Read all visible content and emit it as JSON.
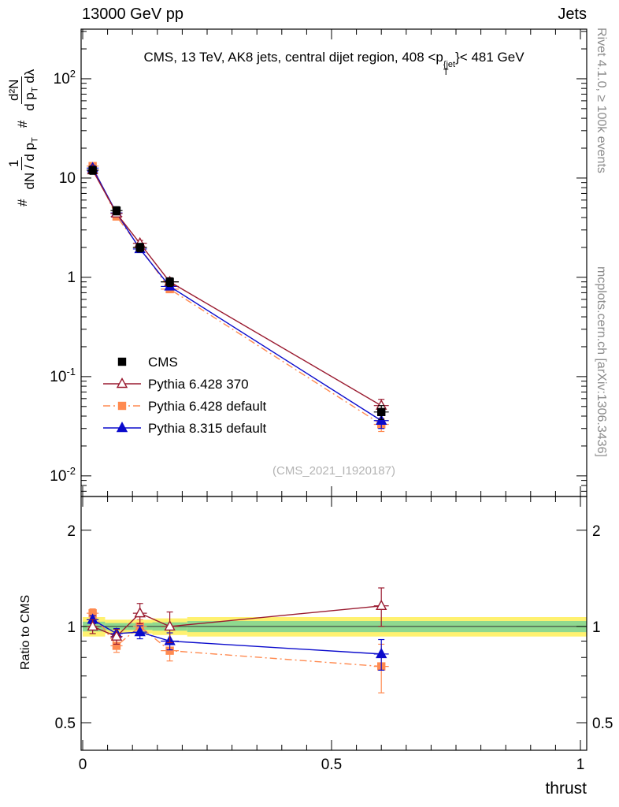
{
  "header": {
    "left": "13000 GeV pp",
    "right": "Jets"
  },
  "title": {
    "pre": "CMS, 13 TeV, AK8 jets, central dijet region, 408 <p",
    "sup": "{jet",
    "sub": "T",
    "post": "}< 481 GeV"
  },
  "side_labels": {
    "rivet": "Rivet 4.1.0, ≥ 100k events",
    "mcplots": "mcplots.cern.ch [arXiv:1306.3436]"
  },
  "watermark": "(CMS_2021_I1920187)",
  "x_axis_label": "thrust",
  "ratio_axis_label": "Ratio to CMS",
  "y_axis_label": {
    "hash1": "#",
    "frac1_num": "1",
    "frac1_den_a": "dN / d p",
    "frac1_den_sub": "T",
    "hash2": "#",
    "frac2_num": "d²N",
    "frac2_den_a": "d p",
    "frac2_den_sub": "T",
    "frac2_den_b": " dλ"
  },
  "chart_data": {
    "type": "line",
    "title": "CMS, 13 TeV, AK8 jets, central dijet region, 408 < pT{jet} < 481 GeV",
    "xlabel": "thrust",
    "ylabel_plain": "# 1/(dN/dpT) d²N/(dpT dλ)",
    "grid": false,
    "legend_position": "left-middle",
    "x_range": [
      0,
      1
    ],
    "x_ticks": [
      {
        "label": "0",
        "value": 0
      },
      {
        "label": "0.5",
        "value": 0.5
      },
      {
        "label": "1",
        "value": 1
      }
    ],
    "x": [
      0.02,
      0.068,
      0.115,
      0.175,
      0.6
    ],
    "x_err": [
      0.012,
      0.012,
      0.014,
      0.018,
      0.015
    ],
    "main_panel": {
      "yscale": "log",
      "ylim": [
        0.0062,
        316
      ],
      "y_ticks": [
        {
          "base": "10",
          "exp": "2",
          "value": 100
        },
        {
          "base": "10",
          "exp": "",
          "value": 10
        },
        {
          "base": "1",
          "exp": "",
          "value": 1
        },
        {
          "base": "10",
          "exp": "-1",
          "value": 0.1
        },
        {
          "base": "10",
          "exp": "-2",
          "value": 0.01
        }
      ],
      "series": [
        {
          "name": "CMS",
          "color": "#000000",
          "marker": "square",
          "fill": "filled",
          "line": "none",
          "values": [
            12.0,
            4.7,
            2.0,
            0.9,
            0.044
          ],
          "yerr": [
            1.1,
            0.45,
            0.2,
            0.09,
            0.007
          ]
        },
        {
          "name": "Pythia 6.428 370",
          "color": "#9a1b30",
          "marker": "triangle",
          "fill": "open",
          "line": "solid",
          "values": [
            12.0,
            4.4,
            2.2,
            0.9,
            0.051
          ],
          "yerr": [
            0.8,
            0.3,
            0.15,
            0.08,
            0.008
          ]
        },
        {
          "name": "Pythia 6.428 default",
          "color": "#ff8a50",
          "marker": "square",
          "fill": "filled",
          "line": "dashdot",
          "values": [
            13.2,
            4.1,
            2.0,
            0.76,
            0.033
          ],
          "yerr": [
            0.7,
            0.25,
            0.12,
            0.06,
            0.005
          ]
        },
        {
          "name": "Pythia 8.315 default",
          "color": "#0a0acc",
          "marker": "triangle",
          "fill": "filled",
          "line": "solid",
          "values": [
            12.6,
            4.45,
            1.93,
            0.81,
            0.036
          ],
          "yerr": [
            0.7,
            0.25,
            0.12,
            0.06,
            0.006
          ]
        }
      ]
    },
    "ratio_panel": {
      "yscale": "log",
      "ylim": [
        0.41,
        2.55
      ],
      "reference": 1,
      "y_ticks": [
        {
          "label": "2",
          "value": 2
        },
        {
          "label": "1",
          "value": 1
        },
        {
          "label": "0.5",
          "value": 0.5
        }
      ],
      "band_colors": {
        "yellow": "#fff170",
        "green": "#8fd98f"
      },
      "bands": [
        {
          "x0": 0.0,
          "x1": 0.045,
          "yellow": 0.07,
          "green": 0.035
        },
        {
          "x0": 0.045,
          "x1": 0.09,
          "yellow": 0.05,
          "green": 0.025
        },
        {
          "x0": 0.09,
          "x1": 0.14,
          "yellow": 0.05,
          "green": 0.025
        },
        {
          "x0": 0.14,
          "x1": 0.21,
          "yellow": 0.06,
          "green": 0.03
        },
        {
          "x0": 0.21,
          "x1": 1.013,
          "yellow": 0.07,
          "green": 0.04
        }
      ],
      "series": [
        {
          "name": "Pythia 6.428 370",
          "color": "#9a1b30",
          "marker": "triangle",
          "fill": "open",
          "line": "solid",
          "values": [
            1.0,
            0.93,
            1.1,
            1.0,
            1.16
          ],
          "yerr": [
            0.05,
            0.05,
            0.08,
            0.11,
            0.16
          ]
        },
        {
          "name": "Pythia 6.428 default",
          "color": "#ff8a50",
          "marker": "square",
          "fill": "filled",
          "line": "dashdot",
          "values": [
            1.1,
            0.87,
            1.0,
            0.84,
            0.75
          ],
          "yerr": [
            0.035,
            0.04,
            0.05,
            0.06,
            0.13
          ]
        },
        {
          "name": "Pythia 8.315 default",
          "color": "#0a0acc",
          "marker": "triangle",
          "fill": "filled",
          "line": "solid",
          "values": [
            1.05,
            0.95,
            0.96,
            0.9,
            0.82
          ],
          "yerr": [
            0.03,
            0.035,
            0.045,
            0.055,
            0.09
          ]
        }
      ]
    }
  }
}
